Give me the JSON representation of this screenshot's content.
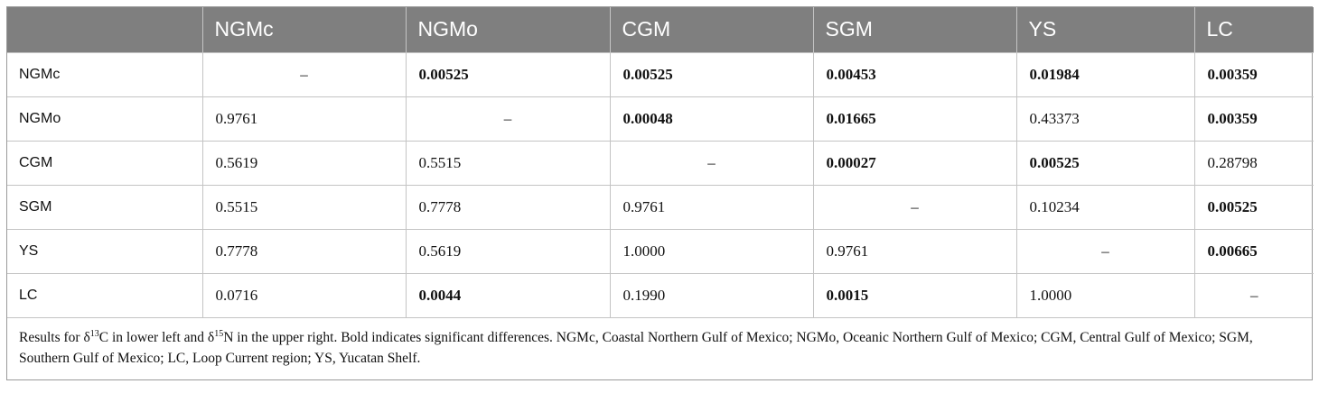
{
  "table": {
    "header": [
      "",
      "NGMc",
      "NGMo",
      "CGM",
      "SGM",
      "YS",
      "LC"
    ],
    "rows": [
      {
        "label": "NGMc",
        "cells": [
          {
            "text": "–",
            "bold": false,
            "dash": true
          },
          {
            "text": "0.00525",
            "bold": true
          },
          {
            "text": "0.00525",
            "bold": true
          },
          {
            "text": "0.00453",
            "bold": true
          },
          {
            "text": "0.01984",
            "bold": true
          },
          {
            "text": "0.00359",
            "bold": true
          }
        ]
      },
      {
        "label": "NGMo",
        "cells": [
          {
            "text": "0.9761",
            "bold": false
          },
          {
            "text": "–",
            "bold": false,
            "dash": true
          },
          {
            "text": "0.00048",
            "bold": true
          },
          {
            "text": "0.01665",
            "bold": true
          },
          {
            "text": "0.43373",
            "bold": false
          },
          {
            "text": "0.00359",
            "bold": true
          }
        ]
      },
      {
        "label": "CGM",
        "cells": [
          {
            "text": "0.5619",
            "bold": false
          },
          {
            "text": "0.5515",
            "bold": false
          },
          {
            "text": "–",
            "bold": false,
            "dash": true
          },
          {
            "text": "0.00027",
            "bold": true
          },
          {
            "text": "0.00525",
            "bold": true
          },
          {
            "text": "0.28798",
            "bold": false
          }
        ]
      },
      {
        "label": "SGM",
        "cells": [
          {
            "text": "0.5515",
            "bold": false
          },
          {
            "text": "0.7778",
            "bold": false
          },
          {
            "text": "0.9761",
            "bold": false
          },
          {
            "text": "–",
            "bold": false,
            "dash": true
          },
          {
            "text": "0.10234",
            "bold": false
          },
          {
            "text": "0.00525",
            "bold": true
          }
        ]
      },
      {
        "label": "YS",
        "cells": [
          {
            "text": "0.7778",
            "bold": false
          },
          {
            "text": "0.5619",
            "bold": false
          },
          {
            "text": "1.0000",
            "bold": false
          },
          {
            "text": "0.9761",
            "bold": false
          },
          {
            "text": "–",
            "bold": false,
            "dash": true
          },
          {
            "text": "0.00665",
            "bold": true
          }
        ]
      },
      {
        "label": "LC",
        "cells": [
          {
            "text": "0.0716",
            "bold": false
          },
          {
            "text": "0.0044",
            "bold": true
          },
          {
            "text": "0.1990",
            "bold": false
          },
          {
            "text": "0.0015",
            "bold": true
          },
          {
            "text": "1.0000",
            "bold": false
          },
          {
            "text": "–",
            "bold": false,
            "dash": true
          }
        ]
      }
    ]
  },
  "footnote": {
    "part1": "Results for δ",
    "sup1": "13",
    "part2": "C in lower left and δ",
    "sup2": "15",
    "part3": "N in the upper right. Bold indicates significant differences. NGMc, Coastal Northern Gulf of Mexico; NGMo, Oceanic Northern Gulf of Mexico; CGM, Central Gulf of Mexico; SGM, Southern Gulf of Mexico; LC, Loop Current region; YS, Yucatan Shelf."
  }
}
